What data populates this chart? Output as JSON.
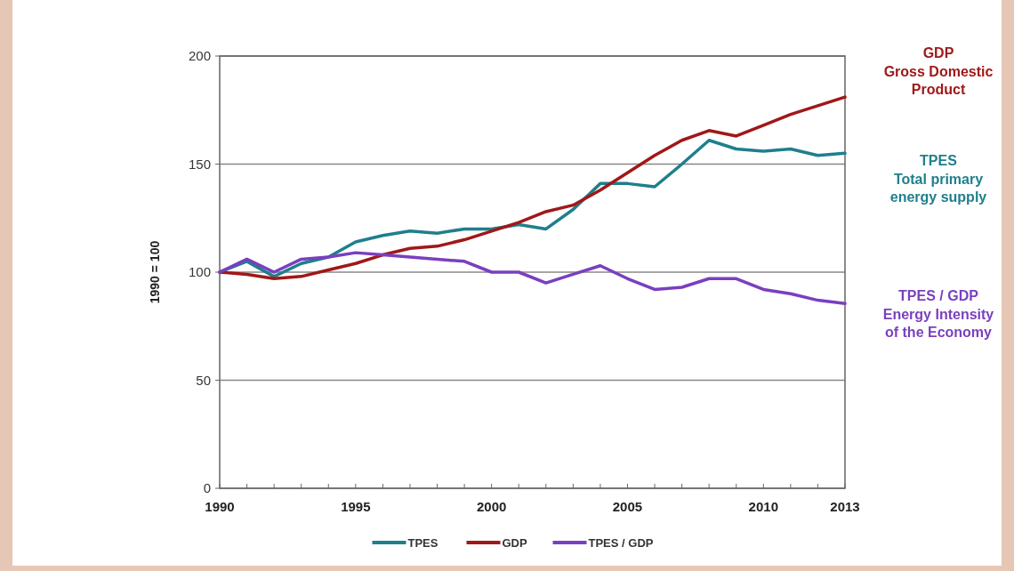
{
  "chart_data": {
    "type": "line",
    "ylabel": "1990 = 100",
    "x": [
      1990,
      1991,
      1992,
      1993,
      1994,
      1995,
      1996,
      1997,
      1998,
      1999,
      2000,
      2001,
      2002,
      2003,
      2004,
      2005,
      2006,
      2007,
      2008,
      2009,
      2010,
      2011,
      2012,
      2013
    ],
    "series": [
      {
        "name": "TPES",
        "color": "#1f7f8c",
        "values": [
          100,
          105,
          98,
          104,
          107,
          114,
          117,
          119,
          118,
          120,
          120,
          122,
          120,
          129,
          141,
          141,
          139.5,
          150,
          161,
          157,
          156,
          157,
          154,
          155
        ]
      },
      {
        "name": "GDP",
        "color": "#a01818",
        "values": [
          100,
          99,
          97,
          98,
          101,
          104,
          108,
          111,
          112,
          115,
          119,
          123,
          128,
          131,
          138,
          146,
          154,
          161,
          165.5,
          163,
          168,
          173,
          177,
          181
        ]
      },
      {
        "name": "TPES / GDP",
        "color": "#7a3fbf",
        "values": [
          100,
          106,
          100,
          106,
          107,
          109,
          108,
          107,
          106,
          105,
          100,
          100,
          95,
          99,
          103,
          97,
          92,
          93,
          97,
          97,
          92,
          90,
          87,
          85.5
        ]
      }
    ],
    "xlim": [
      1990,
      2013
    ],
    "xticks": [
      1990,
      {
        "value": 1991,
        "label": null
      },
      {
        "value": 1992,
        "label": null
      },
      {
        "value": 1993,
        "label": null
      },
      {
        "value": 1994,
        "label": null
      },
      1995,
      {
        "value": 1996,
        "label": null
      },
      {
        "value": 1997,
        "label": null
      },
      {
        "value": 1998,
        "label": null
      },
      {
        "value": 1999,
        "label": null
      },
      2000,
      {
        "value": 2001,
        "label": null
      },
      {
        "value": 2002,
        "label": null
      },
      {
        "value": 2003,
        "label": null
      },
      {
        "value": 2004,
        "label": null
      },
      2005,
      {
        "value": 2006,
        "label": null
      },
      {
        "value": 2007,
        "label": null
      },
      {
        "value": 2008,
        "label": null
      },
      {
        "value": 2009,
        "label": null
      },
      2010,
      {
        "value": 2011,
        "label": null
      },
      {
        "value": 2012,
        "label": null
      },
      2013
    ],
    "ylim": [
      0,
      200
    ],
    "yticks": [
      0,
      50,
      100,
      150,
      200
    ],
    "grid": "y",
    "legend": "bottom",
    "marker": "none",
    "line_style": "solid",
    "annotations": [
      "GDP\nGross Domestic\nProduct",
      "TPES\nTotal primary\nenergy supply",
      "TPES / GDP\nEnergy Intensity\nof the Economy"
    ]
  }
}
